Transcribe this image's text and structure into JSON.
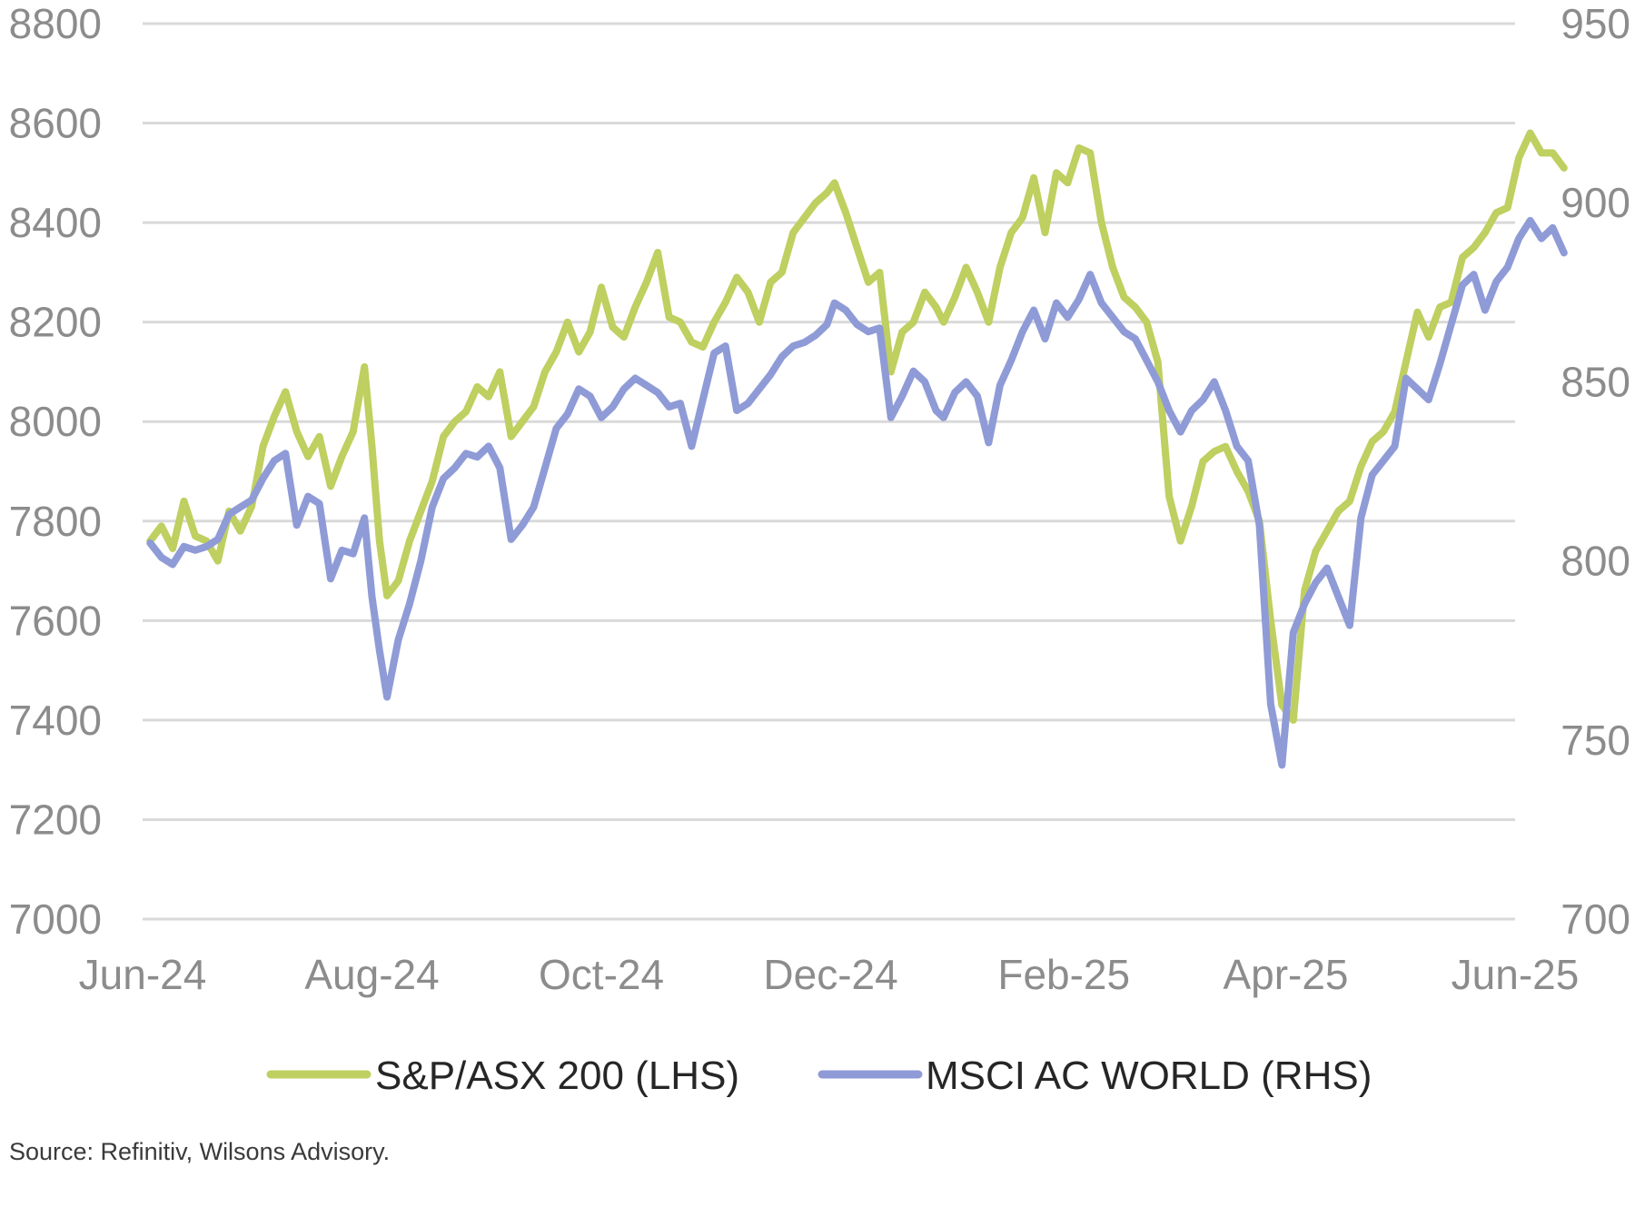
{
  "chart_data": {
    "type": "line",
    "title": "",
    "source": "Source: Refinitiv, Wilsons Advisory.",
    "legend_position": "bottom",
    "grid": "horizontal",
    "colors": {
      "asx": "#bfcf60",
      "msci": "#8f9bd6",
      "grid": "#d9d9d9",
      "tick_text": "#8c8c8c"
    },
    "x": {
      "range": [
        "2024-06",
        "2025-06"
      ],
      "tick_labels": [
        "Jun-24",
        "Aug-24",
        "Oct-24",
        "Dec-24",
        "Feb-25",
        "Apr-25",
        "Jun-25"
      ],
      "tick_positions": [
        "2024-06",
        "2024-08",
        "2024-10",
        "2024-12",
        "2025-02",
        "2025-04",
        "2025-06"
      ]
    },
    "y_left": {
      "range": [
        7000,
        8800
      ],
      "ticks": [
        "7000",
        "7200",
        "7400",
        "7600",
        "7800",
        "8000",
        "8200",
        "8400",
        "8600",
        "8800"
      ]
    },
    "y_right": {
      "range": [
        700,
        950
      ],
      "ticks": [
        "700",
        "750",
        "800",
        "850",
        "900",
        "950"
      ]
    },
    "series": [
      {
        "name": "S&P/ASX 200 (LHS)",
        "axis": "left",
        "points": [
          [
            "2024-06-03",
            7760
          ],
          [
            "2024-06-06",
            7790
          ],
          [
            "2024-06-09",
            7745
          ],
          [
            "2024-06-12",
            7840
          ],
          [
            "2024-06-15",
            7770
          ],
          [
            "2024-06-18",
            7760
          ],
          [
            "2024-06-21",
            7720
          ],
          [
            "2024-06-24",
            7820
          ],
          [
            "2024-06-27",
            7780
          ],
          [
            "2024-06-30",
            7830
          ],
          [
            "2024-07-03",
            7950
          ],
          [
            "2024-07-06",
            8010
          ],
          [
            "2024-07-09",
            8060
          ],
          [
            "2024-07-12",
            7980
          ],
          [
            "2024-07-15",
            7930
          ],
          [
            "2024-07-18",
            7970
          ],
          [
            "2024-07-21",
            7870
          ],
          [
            "2024-07-24",
            7930
          ],
          [
            "2024-07-27",
            7980
          ],
          [
            "2024-07-30",
            8110
          ],
          [
            "2024-08-01",
            7950
          ],
          [
            "2024-08-03",
            7760
          ],
          [
            "2024-08-05",
            7650
          ],
          [
            "2024-08-08",
            7680
          ],
          [
            "2024-08-11",
            7760
          ],
          [
            "2024-08-14",
            7820
          ],
          [
            "2024-08-17",
            7880
          ],
          [
            "2024-08-20",
            7970
          ],
          [
            "2024-08-23",
            8000
          ],
          [
            "2024-08-26",
            8020
          ],
          [
            "2024-08-29",
            8070
          ],
          [
            "2024-09-01",
            8050
          ],
          [
            "2024-09-04",
            8100
          ],
          [
            "2024-09-07",
            7970
          ],
          [
            "2024-09-10",
            8000
          ],
          [
            "2024-09-13",
            8030
          ],
          [
            "2024-09-16",
            8100
          ],
          [
            "2024-09-19",
            8140
          ],
          [
            "2024-09-22",
            8200
          ],
          [
            "2024-09-25",
            8140
          ],
          [
            "2024-09-28",
            8180
          ],
          [
            "2024-10-01",
            8270
          ],
          [
            "2024-10-04",
            8190
          ],
          [
            "2024-10-07",
            8170
          ],
          [
            "2024-10-10",
            8230
          ],
          [
            "2024-10-13",
            8280
          ],
          [
            "2024-10-16",
            8340
          ],
          [
            "2024-10-19",
            8210
          ],
          [
            "2024-10-22",
            8200
          ],
          [
            "2024-10-25",
            8160
          ],
          [
            "2024-10-28",
            8150
          ],
          [
            "2024-10-31",
            8200
          ],
          [
            "2024-11-03",
            8240
          ],
          [
            "2024-11-06",
            8290
          ],
          [
            "2024-11-09",
            8260
          ],
          [
            "2024-11-12",
            8200
          ],
          [
            "2024-11-15",
            8280
          ],
          [
            "2024-11-18",
            8300
          ],
          [
            "2024-11-21",
            8380
          ],
          [
            "2024-11-24",
            8410
          ],
          [
            "2024-11-27",
            8440
          ],
          [
            "2024-11-30",
            8460
          ],
          [
            "2024-12-02",
            8480
          ],
          [
            "2024-12-05",
            8420
          ],
          [
            "2024-12-08",
            8350
          ],
          [
            "2024-12-11",
            8280
          ],
          [
            "2024-12-14",
            8300
          ],
          [
            "2024-12-17",
            8100
          ],
          [
            "2024-12-20",
            8180
          ],
          [
            "2024-12-23",
            8200
          ],
          [
            "2024-12-26",
            8260
          ],
          [
            "2024-12-29",
            8230
          ],
          [
            "2024-12-31",
            8200
          ],
          [
            "2025-01-03",
            8250
          ],
          [
            "2025-01-06",
            8310
          ],
          [
            "2025-01-09",
            8260
          ],
          [
            "2025-01-12",
            8200
          ],
          [
            "2025-01-15",
            8310
          ],
          [
            "2025-01-18",
            8380
          ],
          [
            "2025-01-21",
            8410
          ],
          [
            "2025-01-24",
            8490
          ],
          [
            "2025-01-27",
            8380
          ],
          [
            "2025-01-30",
            8500
          ],
          [
            "2025-02-02",
            8480
          ],
          [
            "2025-02-05",
            8550
          ],
          [
            "2025-02-08",
            8540
          ],
          [
            "2025-02-11",
            8400
          ],
          [
            "2025-02-14",
            8310
          ],
          [
            "2025-02-17",
            8250
          ],
          [
            "2025-02-20",
            8230
          ],
          [
            "2025-02-23",
            8200
          ],
          [
            "2025-02-26",
            8120
          ],
          [
            "2025-03-01",
            7850
          ],
          [
            "2025-03-04",
            7760
          ],
          [
            "2025-03-07",
            7830
          ],
          [
            "2025-03-10",
            7920
          ],
          [
            "2025-03-13",
            7940
          ],
          [
            "2025-03-16",
            7950
          ],
          [
            "2025-03-19",
            7900
          ],
          [
            "2025-03-22",
            7860
          ],
          [
            "2025-03-25",
            7800
          ],
          [
            "2025-03-28",
            7600
          ],
          [
            "2025-03-31",
            7430
          ],
          [
            "2025-04-03",
            7400
          ],
          [
            "2025-04-06",
            7660
          ],
          [
            "2025-04-09",
            7740
          ],
          [
            "2025-04-12",
            7780
          ],
          [
            "2025-04-15",
            7820
          ],
          [
            "2025-04-18",
            7840
          ],
          [
            "2025-04-21",
            7910
          ],
          [
            "2025-04-24",
            7960
          ],
          [
            "2025-04-27",
            7980
          ],
          [
            "2025-04-30",
            8020
          ],
          [
            "2025-05-03",
            8120
          ],
          [
            "2025-05-06",
            8220
          ],
          [
            "2025-05-09",
            8170
          ],
          [
            "2025-05-12",
            8230
          ],
          [
            "2025-05-15",
            8240
          ],
          [
            "2025-05-18",
            8330
          ],
          [
            "2025-05-21",
            8350
          ],
          [
            "2025-05-24",
            8380
          ],
          [
            "2025-05-27",
            8420
          ],
          [
            "2025-05-30",
            8430
          ],
          [
            "2025-06-02",
            8530
          ],
          [
            "2025-06-05",
            8580
          ],
          [
            "2025-06-08",
            8540
          ],
          [
            "2025-06-11",
            8540
          ],
          [
            "2025-06-14",
            8510
          ]
        ]
      },
      {
        "name": "MSCI AC WORLD (RHS)",
        "axis": "right",
        "points": [
          [
            "2024-06-03",
            805
          ],
          [
            "2024-06-06",
            801
          ],
          [
            "2024-06-09",
            799
          ],
          [
            "2024-06-12",
            804
          ],
          [
            "2024-06-15",
            803
          ],
          [
            "2024-06-18",
            804
          ],
          [
            "2024-06-21",
            806
          ],
          [
            "2024-06-24",
            813
          ],
          [
            "2024-06-27",
            815
          ],
          [
            "2024-06-30",
            817
          ],
          [
            "2024-07-03",
            823
          ],
          [
            "2024-07-06",
            828
          ],
          [
            "2024-07-09",
            830
          ],
          [
            "2024-07-12",
            810
          ],
          [
            "2024-07-15",
            818
          ],
          [
            "2024-07-18",
            816
          ],
          [
            "2024-07-21",
            795
          ],
          [
            "2024-07-24",
            803
          ],
          [
            "2024-07-27",
            802
          ],
          [
            "2024-07-30",
            812
          ],
          [
            "2024-08-01",
            790
          ],
          [
            "2024-08-03",
            775
          ],
          [
            "2024-08-05",
            762
          ],
          [
            "2024-08-08",
            778
          ],
          [
            "2024-08-11",
            788
          ],
          [
            "2024-08-14",
            800
          ],
          [
            "2024-08-17",
            815
          ],
          [
            "2024-08-20",
            823
          ],
          [
            "2024-08-23",
            826
          ],
          [
            "2024-08-26",
            830
          ],
          [
            "2024-08-29",
            829
          ],
          [
            "2024-09-01",
            832
          ],
          [
            "2024-09-04",
            826
          ],
          [
            "2024-09-07",
            806
          ],
          [
            "2024-09-10",
            810
          ],
          [
            "2024-09-13",
            815
          ],
          [
            "2024-09-16",
            826
          ],
          [
            "2024-09-19",
            837
          ],
          [
            "2024-09-22",
            841
          ],
          [
            "2024-09-25",
            848
          ],
          [
            "2024-09-28",
            846
          ],
          [
            "2024-10-01",
            840
          ],
          [
            "2024-10-04",
            843
          ],
          [
            "2024-10-07",
            848
          ],
          [
            "2024-10-10",
            851
          ],
          [
            "2024-10-13",
            849
          ],
          [
            "2024-10-16",
            847
          ],
          [
            "2024-10-19",
            843
          ],
          [
            "2024-10-22",
            844
          ],
          [
            "2024-10-25",
            832
          ],
          [
            "2024-10-28",
            845
          ],
          [
            "2024-10-31",
            858
          ],
          [
            "2024-11-03",
            860
          ],
          [
            "2024-11-06",
            842
          ],
          [
            "2024-11-09",
            844
          ],
          [
            "2024-11-12",
            848
          ],
          [
            "2024-11-15",
            852
          ],
          [
            "2024-11-18",
            857
          ],
          [
            "2024-11-21",
            860
          ],
          [
            "2024-11-24",
            861
          ],
          [
            "2024-11-27",
            863
          ],
          [
            "2024-11-30",
            866
          ],
          [
            "2024-12-02",
            872
          ],
          [
            "2024-12-05",
            870
          ],
          [
            "2024-12-08",
            866
          ],
          [
            "2024-12-11",
            864
          ],
          [
            "2024-12-14",
            865
          ],
          [
            "2024-12-17",
            840
          ],
          [
            "2024-12-20",
            846
          ],
          [
            "2024-12-23",
            853
          ],
          [
            "2024-12-26",
            850
          ],
          [
            "2024-12-29",
            842
          ],
          [
            "2024-12-31",
            840
          ],
          [
            "2025-01-03",
            847
          ],
          [
            "2025-01-06",
            850
          ],
          [
            "2025-01-09",
            846
          ],
          [
            "2025-01-12",
            833
          ],
          [
            "2025-01-15",
            849
          ],
          [
            "2025-01-18",
            856
          ],
          [
            "2025-01-21",
            864
          ],
          [
            "2025-01-24",
            870
          ],
          [
            "2025-01-27",
            862
          ],
          [
            "2025-01-30",
            872
          ],
          [
            "2025-02-02",
            868
          ],
          [
            "2025-02-05",
            873
          ],
          [
            "2025-02-08",
            880
          ],
          [
            "2025-02-11",
            872
          ],
          [
            "2025-02-14",
            868
          ],
          [
            "2025-02-17",
            864
          ],
          [
            "2025-02-20",
            862
          ],
          [
            "2025-02-23",
            856
          ],
          [
            "2025-02-26",
            850
          ],
          [
            "2025-03-01",
            842
          ],
          [
            "2025-03-04",
            836
          ],
          [
            "2025-03-07",
            842
          ],
          [
            "2025-03-10",
            845
          ],
          [
            "2025-03-13",
            850
          ],
          [
            "2025-03-16",
            842
          ],
          [
            "2025-03-19",
            832
          ],
          [
            "2025-03-22",
            828
          ],
          [
            "2025-03-25",
            810
          ],
          [
            "2025-03-28",
            760
          ],
          [
            "2025-03-31",
            743
          ],
          [
            "2025-04-03",
            780
          ],
          [
            "2025-04-06",
            788
          ],
          [
            "2025-04-09",
            794
          ],
          [
            "2025-04-12",
            798
          ],
          [
            "2025-04-15",
            790
          ],
          [
            "2025-04-18",
            782
          ],
          [
            "2025-04-21",
            812
          ],
          [
            "2025-04-24",
            824
          ],
          [
            "2025-04-27",
            828
          ],
          [
            "2025-04-30",
            832
          ],
          [
            "2025-05-03",
            851
          ],
          [
            "2025-05-06",
            848
          ],
          [
            "2025-05-09",
            845
          ],
          [
            "2025-05-12",
            855
          ],
          [
            "2025-05-15",
            866
          ],
          [
            "2025-05-18",
            877
          ],
          [
            "2025-05-21",
            880
          ],
          [
            "2025-05-24",
            870
          ],
          [
            "2025-05-27",
            878
          ],
          [
            "2025-05-30",
            882
          ],
          [
            "2025-06-02",
            890
          ],
          [
            "2025-06-05",
            895
          ],
          [
            "2025-06-08",
            890
          ],
          [
            "2025-06-11",
            893
          ],
          [
            "2025-06-14",
            886
          ]
        ]
      }
    ]
  }
}
